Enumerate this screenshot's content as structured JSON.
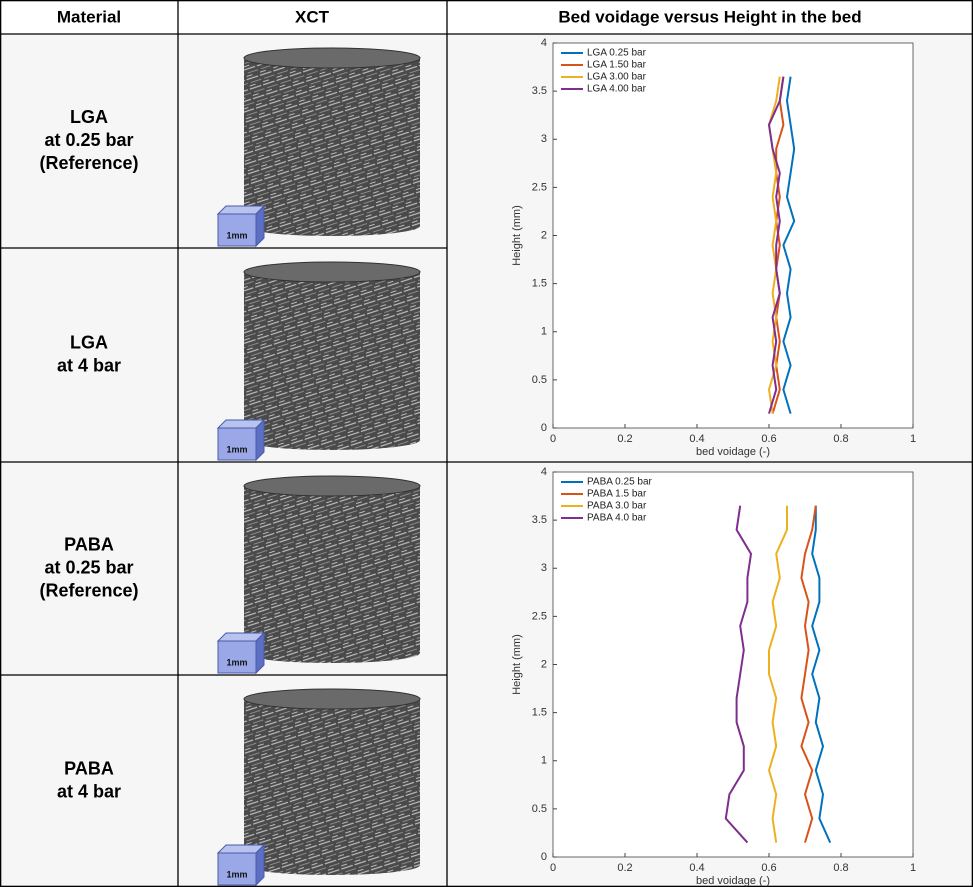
{
  "table": {
    "header": [
      "Material",
      "XCT",
      "Bed voidage versus Height in the bed"
    ],
    "rows": [
      {
        "material": [
          "LGA",
          "at 0.25 bar",
          "(Reference)"
        ],
        "scale": "1mm"
      },
      {
        "material": [
          "LGA",
          "at 4 bar"
        ],
        "scale": "1mm"
      },
      {
        "material": [
          "PABA",
          "at 0.25 bar",
          "(Reference)"
        ],
        "scale": "1mm"
      },
      {
        "material": [
          "PABA",
          "at 4 bar"
        ],
        "scale": "1mm"
      }
    ]
  },
  "chart_data": [
    {
      "type": "line",
      "xlabel": "bed voidage (-)",
      "ylabel": "Height (mm)",
      "xlim": [
        0,
        1
      ],
      "ylim": [
        0,
        4
      ],
      "xticks": [
        0,
        0.2,
        0.4,
        0.6,
        0.8,
        1
      ],
      "yticks": [
        0,
        0.5,
        1,
        1.5,
        2,
        2.5,
        3,
        3.5,
        4
      ],
      "legend": "upper left",
      "y": [
        0.15,
        0.4,
        0.65,
        0.9,
        1.15,
        1.4,
        1.65,
        1.9,
        2.15,
        2.4,
        2.65,
        2.9,
        3.15,
        3.4,
        3.65
      ],
      "series": [
        {
          "name": "LGA 0.25 bar",
          "color": "#0072bd",
          "values": [
            0.66,
            0.64,
            0.66,
            0.64,
            0.66,
            0.65,
            0.66,
            0.64,
            0.67,
            0.65,
            0.66,
            0.67,
            0.66,
            0.65,
            0.66
          ]
        },
        {
          "name": "LGA 1.50 bar",
          "color": "#d95319",
          "values": [
            0.61,
            0.63,
            0.62,
            0.63,
            0.62,
            0.63,
            0.62,
            0.63,
            0.62,
            0.63,
            0.62,
            0.62,
            0.64,
            0.63,
            0.64
          ]
        },
        {
          "name": "LGA 3.00 bar",
          "color": "#edb120",
          "values": [
            0.61,
            0.6,
            0.62,
            0.61,
            0.62,
            0.61,
            0.62,
            0.61,
            0.62,
            0.61,
            0.62,
            0.61,
            0.6,
            0.62,
            0.63
          ]
        },
        {
          "name": "LGA 4.00 bar",
          "color": "#7e2f8e",
          "values": [
            0.6,
            0.62,
            0.61,
            0.62,
            0.61,
            0.63,
            0.62,
            0.62,
            0.63,
            0.62,
            0.63,
            0.61,
            0.6,
            0.63,
            0.64
          ]
        }
      ]
    },
    {
      "type": "line",
      "xlabel": "bed voidage (-)",
      "ylabel": "Height (mm)",
      "xlim": [
        0,
        1
      ],
      "ylim": [
        0,
        4
      ],
      "xticks": [
        0,
        0.2,
        0.4,
        0.6,
        0.8,
        1
      ],
      "yticks": [
        0,
        0.5,
        1,
        1.5,
        2,
        2.5,
        3,
        3.5,
        4
      ],
      "legend": "upper left",
      "y": [
        0.15,
        0.4,
        0.65,
        0.9,
        1.15,
        1.4,
        1.65,
        1.9,
        2.15,
        2.4,
        2.65,
        2.9,
        3.15,
        3.4,
        3.65
      ],
      "series": [
        {
          "name": "PABA 0.25 bar",
          "color": "#0072bd",
          "values": [
            0.77,
            0.74,
            0.75,
            0.73,
            0.75,
            0.73,
            0.74,
            0.72,
            0.74,
            0.72,
            0.74,
            0.74,
            0.72,
            0.73,
            0.73
          ]
        },
        {
          "name": "PABA 1.5 bar",
          "color": "#d95319",
          "values": [
            0.7,
            0.72,
            0.7,
            0.72,
            0.69,
            0.71,
            0.69,
            0.7,
            0.71,
            0.7,
            0.71,
            0.69,
            0.7,
            0.72,
            0.73
          ]
        },
        {
          "name": "PABA 3.0 bar",
          "color": "#edb120",
          "values": [
            0.62,
            0.61,
            0.62,
            0.6,
            0.62,
            0.61,
            0.62,
            0.6,
            0.6,
            0.62,
            0.61,
            0.63,
            0.62,
            0.65,
            0.65
          ]
        },
        {
          "name": "PABA 4.0 bar",
          "color": "#7e2f8e",
          "values": [
            0.54,
            0.48,
            0.49,
            0.53,
            0.53,
            0.51,
            0.51,
            0.52,
            0.53,
            0.52,
            0.54,
            0.54,
            0.55,
            0.51,
            0.52
          ]
        }
      ]
    }
  ]
}
